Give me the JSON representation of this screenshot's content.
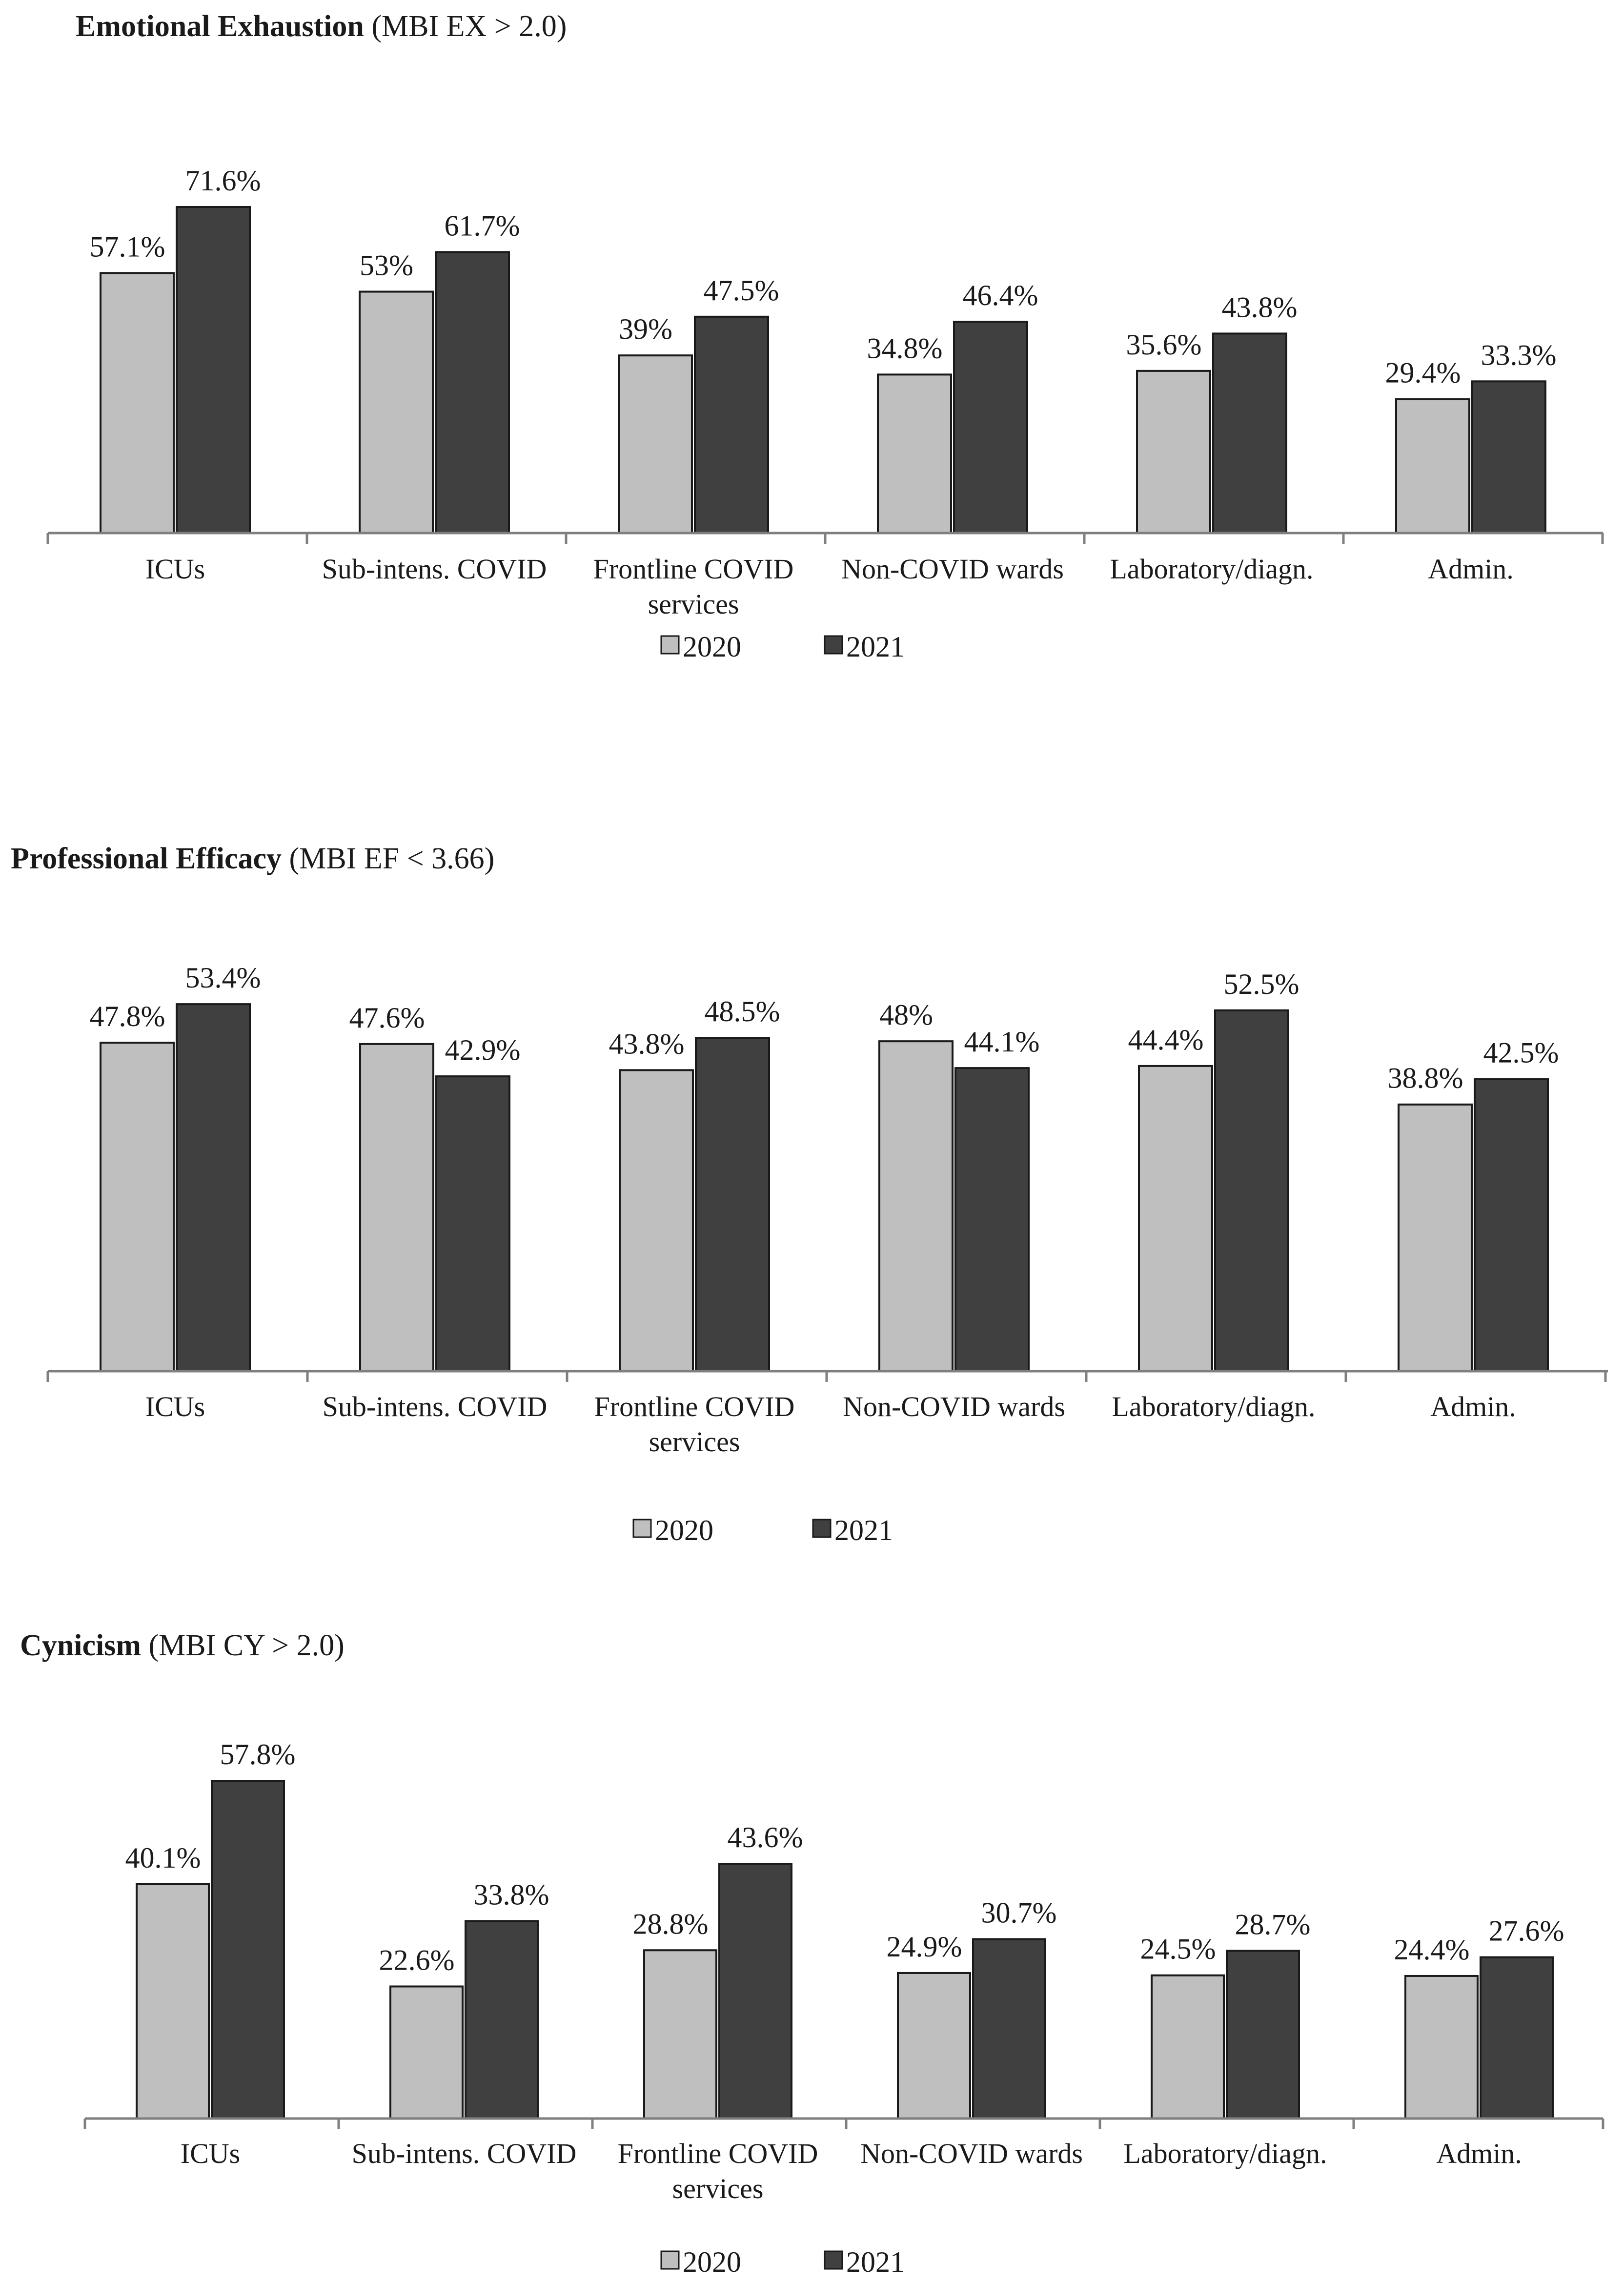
{
  "colors": {
    "series_2020": "#bfbfbf",
    "series_2021": "#404040",
    "outline": "#1a1a1a",
    "axis": "#7f7f7f"
  },
  "chart_data": [
    {
      "type": "bar",
      "title": "Emotional Exhaustion",
      "subtitle": "(MBI EX > 2.0)",
      "categories": [
        [
          "ICUs"
        ],
        [
          "Sub-intens. COVID"
        ],
        [
          "Frontline COVID",
          "services"
        ],
        [
          "Non-COVID wards"
        ],
        [
          "Laboratory/diagn."
        ],
        [
          "Admin."
        ]
      ],
      "series": [
        {
          "name": "2020",
          "values": [
            57.1,
            53,
            39,
            34.8,
            35.6,
            29.4
          ],
          "labels": [
            "57.1%",
            "53%",
            "39%",
            "34.8%",
            "35.6%",
            "29.4%"
          ]
        },
        {
          "name": "2021",
          "values": [
            71.6,
            61.7,
            47.5,
            46.4,
            43.8,
            33.3
          ],
          "labels": [
            "71.6%",
            "61.7%",
            "47.5%",
            "46.4%",
            "43.8%",
            "33.3%"
          ]
        }
      ],
      "ylim": [
        0,
        100
      ],
      "legend": [
        "2020",
        "2021"
      ]
    },
    {
      "type": "bar",
      "title": "Professional Efficacy",
      "subtitle": "(MBI EF < 3.66)",
      "categories": [
        [
          "ICUs"
        ],
        [
          "Sub-intens. COVID"
        ],
        [
          "Frontline COVID",
          "services"
        ],
        [
          "Non-COVID wards"
        ],
        [
          "Laboratory/diagn."
        ],
        [
          "Admin."
        ]
      ],
      "series": [
        {
          "name": "2020",
          "values": [
            47.8,
            47.6,
            43.8,
            48,
            44.4,
            38.8
          ],
          "labels": [
            "47.8%",
            "47.6%",
            "43.8%",
            "48%",
            "44.4%",
            "38.8%"
          ]
        },
        {
          "name": "2021",
          "values": [
            53.4,
            42.9,
            48.5,
            44.1,
            52.5,
            42.5
          ],
          "labels": [
            "53.4%",
            "42.9%",
            "48.5%",
            "44.1%",
            "52.5%",
            "42.5%"
          ]
        }
      ],
      "ylim": [
        0,
        56
      ],
      "legend": [
        "2020",
        "2021"
      ]
    },
    {
      "type": "bar",
      "title": "Cynicism",
      "subtitle": "(MBI CY > 2.0)",
      "categories": [
        [
          "ICUs"
        ],
        [
          "Sub-intens. COVID"
        ],
        [
          "Frontline COVID",
          "services"
        ],
        [
          "Non-COVID wards"
        ],
        [
          "Laboratory/diagn."
        ],
        [
          "Admin."
        ]
      ],
      "series": [
        {
          "name": "2020",
          "values": [
            40.1,
            22.6,
            28.8,
            24.9,
            24.5,
            24.4
          ],
          "labels": [
            "40.1%",
            "22.6%",
            "28.8%",
            "24.9%",
            "24.5%",
            "24.4%"
          ]
        },
        {
          "name": "2021",
          "values": [
            57.8,
            33.8,
            43.6,
            30.7,
            28.7,
            27.6
          ],
          "labels": [
            "57.8%",
            "33.8%",
            "43.6%",
            "30.7%",
            "28.7%",
            "27.6%"
          ]
        }
      ],
      "ylim": [
        0,
        80
      ],
      "legend": [
        "2020",
        "2021"
      ]
    }
  ]
}
